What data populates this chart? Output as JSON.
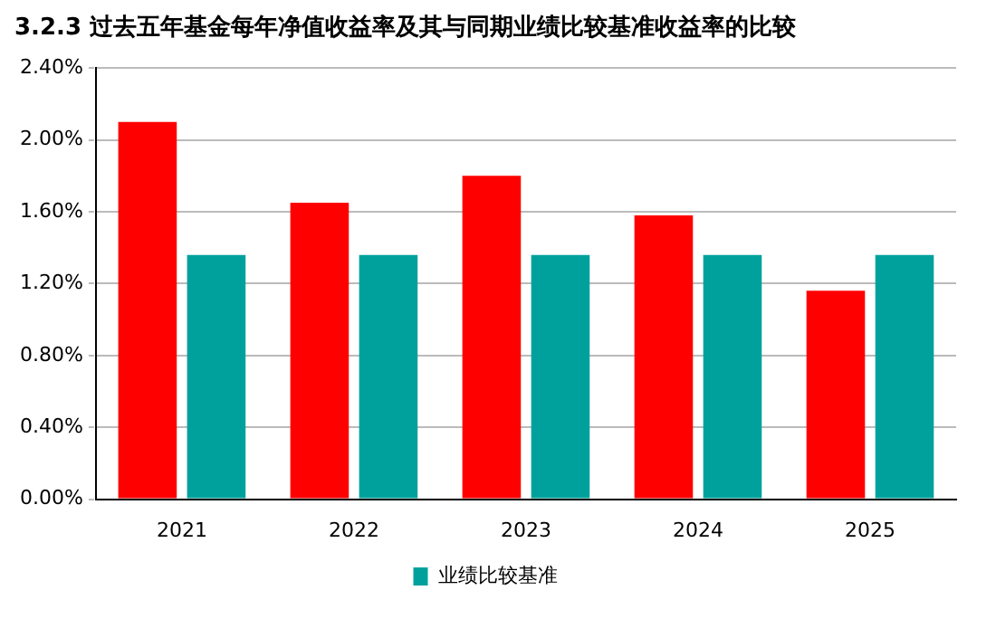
{
  "chart_data": {
    "type": "bar",
    "title": "3.2.3 过去五年基金每年净值收益率及其与同期业绩比较基准收益率的比较",
    "categories": [
      "2021",
      "2022",
      "2023",
      "2024",
      "2025"
    ],
    "series": [
      {
        "color": "#ff0000",
        "values": [
          2.1,
          1.65,
          1.8,
          1.58,
          1.16
        ]
      },
      {
        "name": "业绩比较基准",
        "color": "#00a19c",
        "values": [
          1.36,
          1.36,
          1.36,
          1.36,
          1.36
        ]
      }
    ],
    "ylim": [
      0,
      2.4
    ],
    "yticks": [
      {
        "value": 0,
        "label": "0.00%"
      },
      {
        "value": 0.4,
        "label": "0.40%"
      },
      {
        "value": 0.8,
        "label": "0.80%"
      },
      {
        "value": 1.2,
        "label": "1.20%"
      },
      {
        "value": 1.6,
        "label": "1.60%"
      },
      {
        "value": 2,
        "label": "2.00%"
      },
      {
        "value": 2.4,
        "label": "2.40%"
      }
    ],
    "grid": "y",
    "legend": "bottom"
  }
}
